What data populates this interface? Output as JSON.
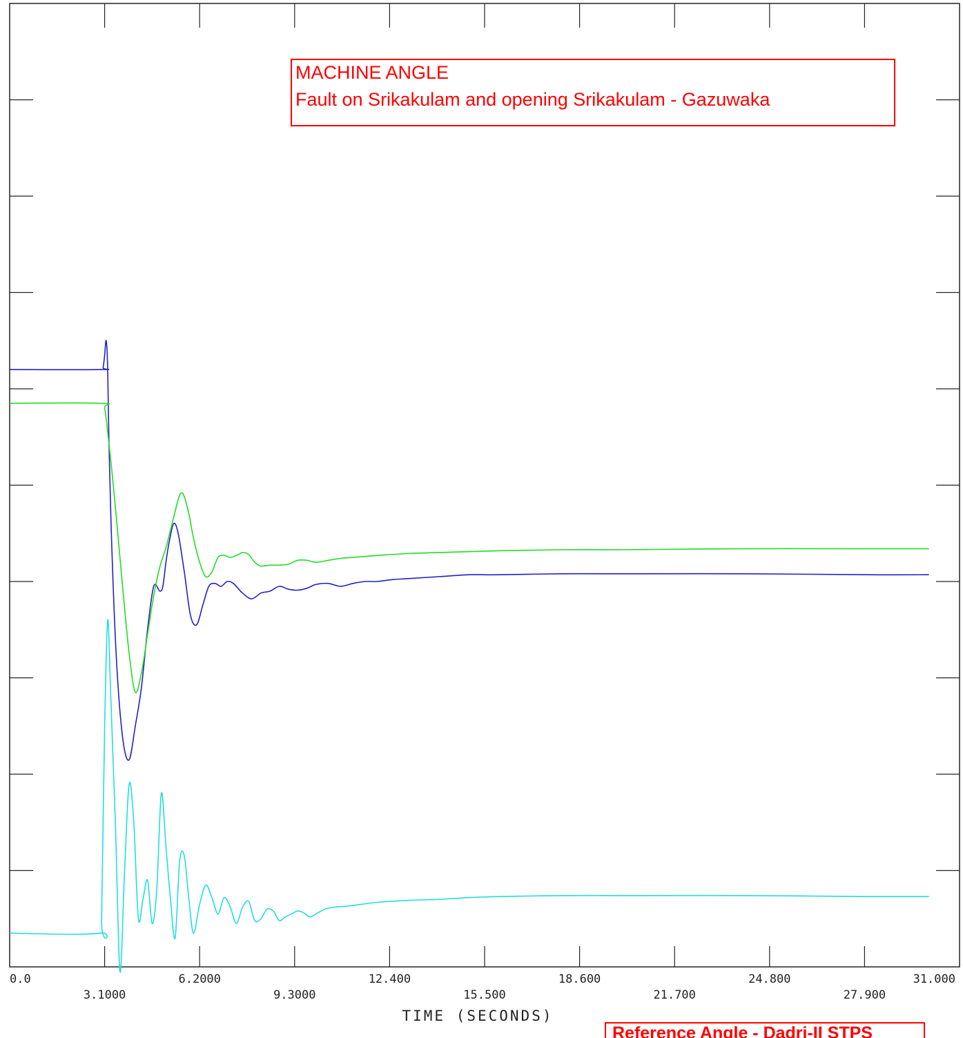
{
  "chart_data": {
    "type": "line",
    "annotation": {
      "line1": "MACHINE ANGLE",
      "line2": "Fault on Srikakulam and opening Srikakulam - Gazuwaka"
    },
    "reference_note": "Reference Angle - Dadri-II STPS",
    "xlabel": "TIME (SECONDS)",
    "xlim": [
      0,
      31
    ],
    "x_ticks": [
      {
        "value": 0,
        "label": "0.0",
        "row": "upper"
      },
      {
        "value": 3.1,
        "label": "3.1000",
        "row": "lower"
      },
      {
        "value": 6.2,
        "label": "6.2000",
        "row": "upper"
      },
      {
        "value": 9.3,
        "label": "9.3000",
        "row": "lower"
      },
      {
        "value": 12.4,
        "label": "12.400",
        "row": "upper"
      },
      {
        "value": 15.5,
        "label": "15.500",
        "row": "lower"
      },
      {
        "value": 18.6,
        "label": "18.600",
        "row": "upper"
      },
      {
        "value": 21.7,
        "label": "21.700",
        "row": "lower"
      },
      {
        "value": 24.8,
        "label": "24.800",
        "row": "upper"
      },
      {
        "value": 27.9,
        "label": "27.900",
        "row": "lower"
      },
      {
        "value": 31.0,
        "label": "31.000",
        "row": "upper"
      }
    ],
    "y_divisions": 10,
    "ylim": [
      0,
      10
    ],
    "grid": false,
    "series": [
      {
        "color": "#2020c8",
        "x": [
          0,
          3.0,
          3.05,
          3.1,
          3.15,
          3.2,
          3.25,
          3.35,
          3.5,
          3.7,
          3.9,
          4.1,
          4.3,
          4.5,
          4.7,
          4.9,
          5.0,
          5.1,
          5.2,
          5.35,
          5.5,
          5.7,
          5.9,
          6.1,
          6.3,
          6.5,
          6.7,
          6.9,
          7.1,
          7.3,
          7.6,
          7.9,
          8.2,
          8.5,
          8.8,
          9.1,
          9.4,
          9.7,
          10.0,
          10.4,
          10.8,
          11.2,
          11.6,
          12.0,
          12.5,
          13.0,
          14.0,
          15.0,
          16.0,
          18.0,
          20.0,
          24.0,
          28.0,
          30.0
        ],
        "y": [
          6.2,
          6.2,
          6.22,
          6.35,
          6.5,
          6.2,
          5.3,
          4.2,
          3.1,
          2.35,
          2.15,
          2.5,
          2.9,
          3.5,
          3.95,
          3.9,
          3.95,
          4.2,
          4.4,
          4.6,
          4.5,
          4.1,
          3.65,
          3.55,
          3.75,
          3.95,
          3.98,
          3.95,
          4.0,
          3.98,
          3.88,
          3.82,
          3.88,
          3.9,
          3.95,
          3.92,
          3.91,
          3.93,
          3.97,
          3.98,
          3.95,
          3.98,
          4.0,
          4.0,
          4.02,
          4.03,
          4.05,
          4.07,
          4.07,
          4.08,
          4.08,
          4.08,
          4.07,
          4.07
        ]
      },
      {
        "color": "#22dd22",
        "x": [
          0,
          3.0,
          3.1,
          3.2,
          3.35,
          3.5,
          3.7,
          3.9,
          4.1,
          4.3,
          4.5,
          4.7,
          4.9,
          5.1,
          5.3,
          5.5,
          5.6,
          5.7,
          5.85,
          6.0,
          6.2,
          6.4,
          6.6,
          6.8,
          7.0,
          7.2,
          7.4,
          7.6,
          7.8,
          8.0,
          8.2,
          8.5,
          8.8,
          9.1,
          9.4,
          9.7,
          10.0,
          10.4,
          10.8,
          11.2,
          11.6,
          12.0,
          13.0,
          14.0,
          16.0,
          18.0,
          20.0,
          24.0,
          28.0,
          30.0
        ],
        "y": [
          5.85,
          5.85,
          5.8,
          5.55,
          5.1,
          4.6,
          3.9,
          3.25,
          2.85,
          3.05,
          3.45,
          3.85,
          4.15,
          4.35,
          4.6,
          4.85,
          4.92,
          4.88,
          4.7,
          4.45,
          4.2,
          4.05,
          4.1,
          4.25,
          4.27,
          4.25,
          4.27,
          4.3,
          4.28,
          4.2,
          4.16,
          4.17,
          4.17,
          4.18,
          4.22,
          4.22,
          4.2,
          4.22,
          4.24,
          4.25,
          4.26,
          4.27,
          4.29,
          4.3,
          4.32,
          4.33,
          4.33,
          4.34,
          4.34,
          4.34
        ]
      },
      {
        "color": "#22dddd",
        "x": [
          0,
          2.95,
          3.0,
          3.1,
          3.2,
          3.3,
          3.45,
          3.6,
          3.75,
          3.9,
          4.05,
          4.2,
          4.35,
          4.5,
          4.65,
          4.8,
          4.95,
          5.1,
          5.25,
          5.4,
          5.55,
          5.7,
          5.85,
          6.0,
          6.2,
          6.4,
          6.6,
          6.8,
          7.0,
          7.2,
          7.4,
          7.6,
          7.8,
          8.0,
          8.2,
          8.4,
          8.6,
          8.8,
          9.0,
          9.2,
          9.4,
          9.6,
          9.8,
          10.0,
          10.3,
          10.6,
          11.0,
          11.5,
          12.0,
          13.0,
          14.0,
          15.0,
          16.0,
          18.0,
          20.0,
          24.0,
          28.0,
          30.0
        ],
        "y": [
          0.35,
          0.35,
          0.5,
          2.5,
          3.6,
          2.8,
          1.5,
          -0.05,
          1.0,
          1.9,
          1.5,
          0.5,
          0.7,
          0.9,
          0.45,
          0.8,
          1.8,
          1.25,
          0.7,
          0.3,
          1.1,
          1.15,
          0.7,
          0.35,
          0.65,
          0.85,
          0.72,
          0.55,
          0.72,
          0.62,
          0.45,
          0.62,
          0.68,
          0.48,
          0.5,
          0.6,
          0.58,
          0.48,
          0.52,
          0.55,
          0.58,
          0.56,
          0.52,
          0.55,
          0.6,
          0.62,
          0.63,
          0.65,
          0.67,
          0.69,
          0.7,
          0.72,
          0.73,
          0.74,
          0.74,
          0.74,
          0.73,
          0.73
        ]
      }
    ]
  }
}
